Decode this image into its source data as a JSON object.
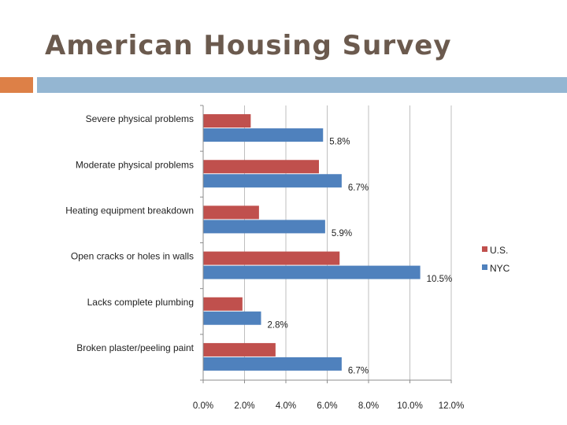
{
  "slide": {
    "title": "American Housing Survey",
    "accent_color": "#dd8047",
    "line_color": "#94b6d2"
  },
  "chart_data": {
    "type": "bar",
    "orientation": "horizontal",
    "categories": [
      "Severe physical problems",
      "Moderate physical problems",
      "Heating equipment breakdown",
      "Open cracks or holes in walls",
      "Lacks complete plumbing",
      "Broken plaster/peeling paint"
    ],
    "series": [
      {
        "name": "U.S.",
        "color": "#c0504d",
        "values": [
          2.3,
          5.6,
          2.7,
          6.6,
          1.9,
          3.5
        ],
        "labels": []
      },
      {
        "name": "NYC",
        "color": "#4f81bd",
        "values": [
          5.8,
          6.7,
          5.9,
          10.5,
          2.8,
          6.7
        ],
        "labels": [
          "5.8%",
          "6.7%",
          "5.9%",
          "10.5%",
          "2.8%",
          "6.7%"
        ]
      }
    ],
    "xlim": [
      0,
      12
    ],
    "xticks": [
      "0.0%",
      "2.0%",
      "4.0%",
      "6.0%",
      "8.0%",
      "10.0%",
      "12.0%"
    ],
    "grid": true,
    "legend_position": "right"
  }
}
